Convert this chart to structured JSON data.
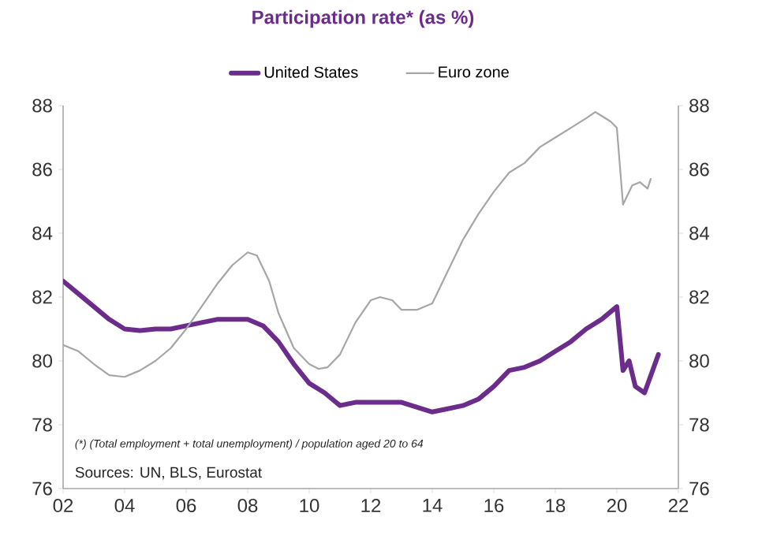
{
  "chart_data": {
    "type": "line",
    "title": "Participation rate* (as %)",
    "series": [
      {
        "name": "United States",
        "color": "#6b2c8b",
        "x": [
          2002,
          2002.5,
          2003,
          2003.5,
          2004,
          2004.5,
          2005,
          2005.5,
          2006,
          2006.5,
          2007,
          2007.5,
          2008,
          2008.5,
          2009,
          2009.5,
          2010,
          2010.5,
          2011,
          2011.5,
          2012,
          2013,
          2014,
          2014.5,
          2015,
          2015.5,
          2016,
          2016.5,
          2017,
          2017.5,
          2018,
          2018.5,
          2019,
          2019.5,
          2020,
          2020.2,
          2020.4,
          2020.6,
          2020.9,
          2021.35
        ],
        "values": [
          82.5,
          82.1,
          81.7,
          81.3,
          81.0,
          80.95,
          81.0,
          81.0,
          81.1,
          81.2,
          81.3,
          81.3,
          81.3,
          81.1,
          80.6,
          79.9,
          79.3,
          79.0,
          78.6,
          78.7,
          78.7,
          78.7,
          78.4,
          78.5,
          78.6,
          78.8,
          79.2,
          79.7,
          79.8,
          80.0,
          80.3,
          80.6,
          81.0,
          81.3,
          81.7,
          79.7,
          80.0,
          79.2,
          79.0,
          80.2
        ]
      },
      {
        "name": "Euro zone",
        "color": "#a6a6a6",
        "x": [
          2002,
          2002.5,
          2003,
          2003.5,
          2004,
          2004.5,
          2005,
          2005.5,
          2006,
          2006.5,
          2007,
          2007.5,
          2008,
          2008.3,
          2008.7,
          2009,
          2009.5,
          2010,
          2010.3,
          2010.6,
          2011,
          2011.5,
          2012,
          2012.3,
          2012.7,
          2013,
          2013.5,
          2014,
          2014.5,
          2015,
          2015.5,
          2016,
          2016.5,
          2017,
          2017.5,
          2018,
          2018.5,
          2019,
          2019.3,
          2019.8,
          2020.0,
          2020.2,
          2020.5,
          2020.75,
          2021.0,
          2021.1
        ],
        "values": [
          80.5,
          80.3,
          79.9,
          79.55,
          79.5,
          79.7,
          80.0,
          80.4,
          81.0,
          81.7,
          82.4,
          83.0,
          83.4,
          83.3,
          82.5,
          81.5,
          80.4,
          79.9,
          79.75,
          79.8,
          80.2,
          81.2,
          81.9,
          82.0,
          81.9,
          81.6,
          81.6,
          81.8,
          82.8,
          83.8,
          84.6,
          85.3,
          85.9,
          86.2,
          86.7,
          87.0,
          87.3,
          87.6,
          87.8,
          87.5,
          87.3,
          84.9,
          85.5,
          85.6,
          85.4,
          85.7
        ]
      }
    ],
    "xlim": [
      2002,
      2022
    ],
    "xticks": [
      {
        "value": 2002,
        "label": "02"
      },
      {
        "value": 2004,
        "label": "04"
      },
      {
        "value": 2006,
        "label": "06"
      },
      {
        "value": 2008,
        "label": "08"
      },
      {
        "value": 2010,
        "label": "10"
      },
      {
        "value": 2012,
        "label": "12"
      },
      {
        "value": 2014,
        "label": "14"
      },
      {
        "value": 2016,
        "label": "16"
      },
      {
        "value": 2018,
        "label": "18"
      },
      {
        "value": 2020,
        "label": "20"
      },
      {
        "value": 2022,
        "label": "22"
      }
    ],
    "ylim": [
      76,
      88
    ],
    "yticks": [
      76,
      78,
      80,
      82,
      84,
      86,
      88
    ],
    "y2lim": [
      76,
      88
    ],
    "y2ticks": [
      76,
      78,
      80,
      82,
      84,
      86,
      88
    ],
    "annotations": [
      "(*) (Total employment + total unemployment) / population aged 20 to 64",
      "Sources: UN, BLS, Eurostat"
    ],
    "legend": "top",
    "grid": false,
    "marker": "none",
    "line_style": "solid"
  }
}
